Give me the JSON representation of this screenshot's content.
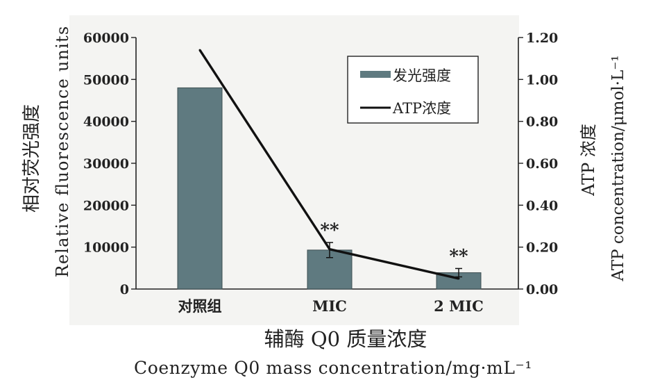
{
  "chart_data": {
    "type": "bar",
    "categories": [
      "对照组",
      "MIC",
      "2 MIC"
    ],
    "series": [
      {
        "name": "发光强度",
        "type": "bar",
        "axis": "left",
        "values": [
          48000,
          9300,
          3900
        ],
        "errors": [
          0,
          1800,
          1000
        ],
        "color": "#5f7a80"
      },
      {
        "name": "ATP浓度",
        "type": "line",
        "axis": "right",
        "values": [
          1.14,
          0.19,
          0.05
        ],
        "color": "#111111"
      }
    ],
    "significance": [
      "",
      "**",
      "**"
    ],
    "ylabel_left": [
      "相对荧光强度",
      "Relative fluorescence units"
    ],
    "ylabel_right": [
      "ATP 浓度",
      "ATP concentration/μmol·L⁻¹"
    ],
    "xlabel": [
      "辅酶 Q0 质量浓度",
      "Coenzyme Q0 mass concentration/mg·mL⁻¹"
    ],
    "ylim_left": [
      0,
      60000
    ],
    "ylim_right": [
      0,
      1.2
    ],
    "yticks_left": [
      "0",
      "10000",
      "20000",
      "30000",
      "40000",
      "50000",
      "60000"
    ],
    "yticks_right": [
      "0.00",
      "0.20",
      "0.40",
      "0.60",
      "0.80",
      "1.00",
      "1.20"
    ],
    "legend_position": "top-right",
    "grid": false
  }
}
